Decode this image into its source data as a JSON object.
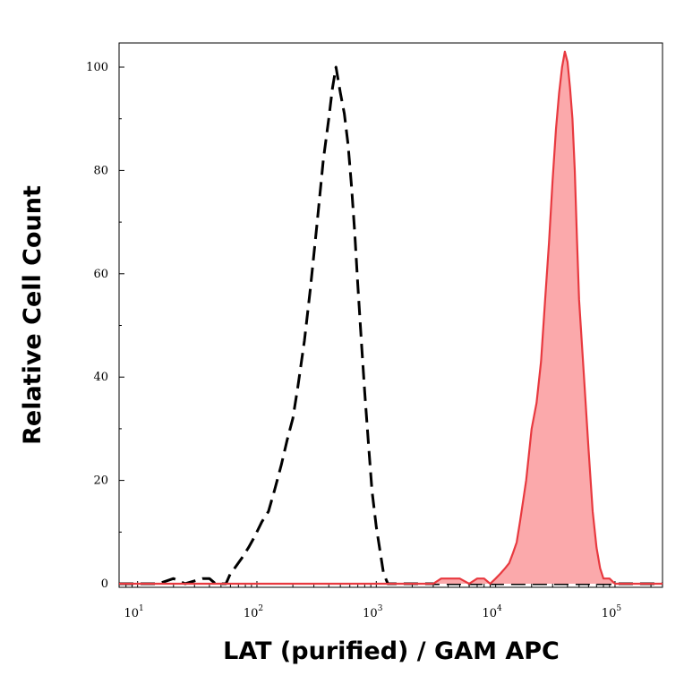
{
  "chart_data": {
    "type": "area",
    "xlabel": "LAT (purified) / GAM APC",
    "ylabel": "Relative Cell Count",
    "x_scale": "log",
    "xlim": [
      7,
      250000
    ],
    "ylim": [
      0,
      106
    ],
    "x_ticks": [
      {
        "value": 10,
        "base": "10",
        "exp": "1"
      },
      {
        "value": 100,
        "base": "10",
        "exp": "2"
      },
      {
        "value": 1000,
        "base": "10",
        "exp": "3"
      },
      {
        "value": 10000,
        "base": "10",
        "exp": "4"
      },
      {
        "value": 100000,
        "base": "10",
        "exp": "5"
      }
    ],
    "y_ticks": [
      0,
      20,
      40,
      60,
      80,
      100
    ],
    "grid": false,
    "legend": "none",
    "series": [
      {
        "style": "dashed",
        "color": "#000000",
        "fill": "none",
        "x": [
          7,
          15,
          20,
          25,
          35,
          40,
          45,
          55,
          60,
          65,
          75,
          85,
          95,
          110,
          125,
          140,
          160,
          180,
          200,
          220,
          250,
          280,
          320,
          360,
          400,
          430,
          460,
          500,
          540,
          580,
          620,
          660,
          700,
          750,
          800,
          860,
          920,
          1000,
          1080,
          1150,
          1250,
          1400,
          2000,
          5000,
          20000,
          100000,
          250000
        ],
        "y": [
          0,
          0,
          1,
          0,
          1,
          1,
          0,
          0,
          2,
          3,
          5,
          7,
          9,
          12,
          14,
          18,
          23,
          28,
          32,
          38,
          47,
          57,
          70,
          82,
          90,
          96,
          100,
          95,
          91,
          85,
          77,
          68,
          58,
          47,
          37,
          27,
          18,
          11,
          6,
          2,
          0,
          0,
          0,
          0,
          0,
          0,
          0
        ]
      },
      {
        "style": "solid",
        "color": "#e8393f",
        "fill": "#fba9ab",
        "x": [
          7,
          1000,
          3000,
          3500,
          4000,
          5000,
          6000,
          7000,
          8000,
          9000,
          10000,
          11000,
          12000,
          13000,
          14000,
          15000,
          16000,
          18000,
          20000,
          22000,
          24000,
          26000,
          28000,
          30000,
          32000,
          34000,
          36000,
          38000,
          40000,
          42000,
          44000,
          46000,
          48000,
          50000,
          55000,
          60000,
          65000,
          70000,
          75000,
          80000,
          90000,
          100000,
          150000,
          250000
        ],
        "y": [
          0,
          0,
          0,
          1,
          1,
          1,
          0,
          1,
          1,
          0,
          1,
          2,
          3,
          4,
          6,
          8,
          12,
          20,
          30,
          35,
          43,
          55,
          66,
          78,
          88,
          95,
          100,
          103,
          101,
          96,
          90,
          80,
          67,
          55,
          40,
          26,
          14,
          7,
          3,
          1,
          1,
          0,
          0,
          0
        ]
      }
    ]
  }
}
